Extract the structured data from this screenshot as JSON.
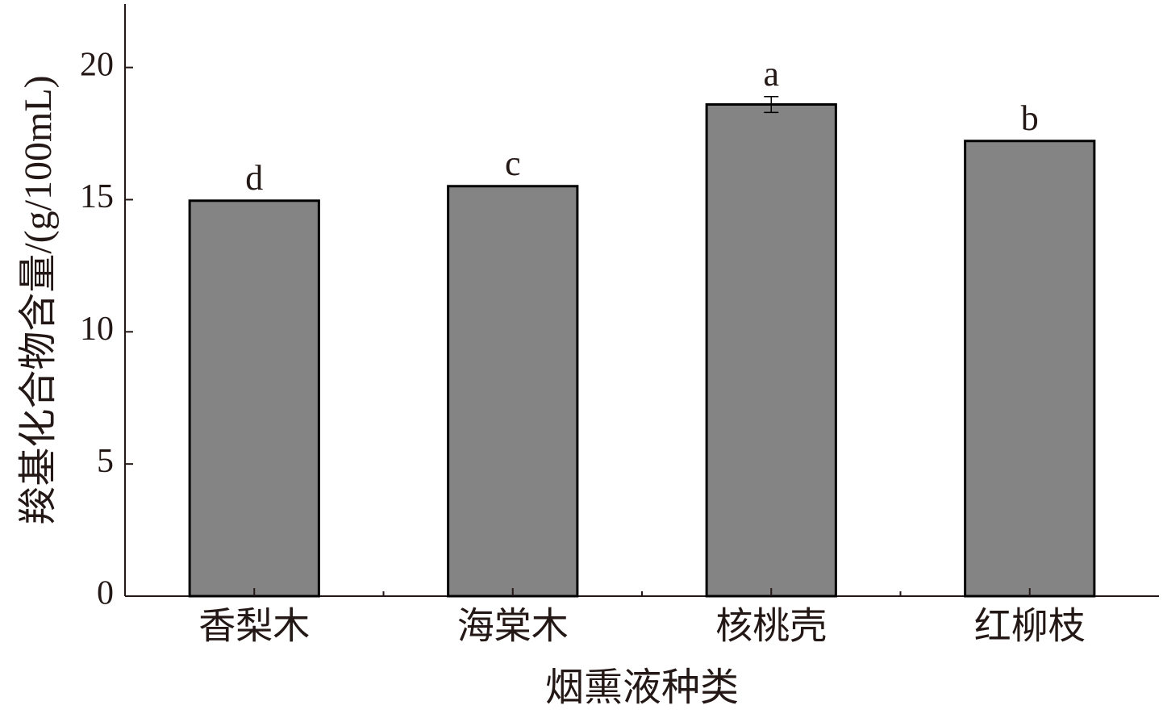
{
  "chart_data": {
    "type": "bar",
    "x_label": "烟熏液种类",
    "y_label": "羧基化合物含量/(g/100mL)",
    "categories": [
      "香梨木",
      "海棠木",
      "核桃壳",
      "红柳枝"
    ],
    "values": [
      14.96,
      15.51,
      18.6,
      17.22
    ],
    "errors": [
      0,
      0,
      0.3,
      0
    ],
    "significance_labels": [
      "d",
      "c",
      "a",
      "b"
    ],
    "color": "#848484",
    "ylim": [
      0,
      22.4
    ],
    "yticks": [
      0,
      5,
      10,
      15,
      20
    ]
  }
}
